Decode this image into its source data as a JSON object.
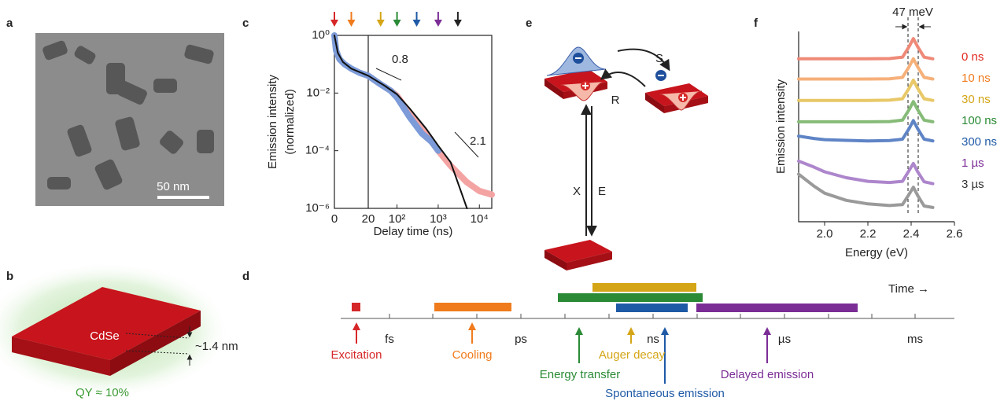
{
  "panels": {
    "a": {
      "label": "a",
      "scale_bar": "50 nm"
    },
    "b": {
      "label": "b",
      "material": "CdSe",
      "thickness": "~1.4 nm",
      "quantum_yield": "QY ≈ 10%"
    },
    "d": {
      "label": "d",
      "axis_title": "Time →",
      "time_units": [
        "fs",
        "ps",
        "ns",
        "µs",
        "ms"
      ],
      "processes": [
        "Excitation",
        "Cooling",
        "Energy transfer",
        "Auger decay",
        "Spontaneous emission",
        "Delayed emission"
      ]
    },
    "e": {
      "label": "e",
      "transitions": [
        "S",
        "R",
        "X",
        "E"
      ]
    }
  },
  "chart_data": [
    {
      "panel_label": "c",
      "type": "scatter",
      "ylabel_lines": [
        "Emission intensity",
        "(normalized)"
      ],
      "xlabel": "Delay time (ns)",
      "xscale": "linear-log",
      "x_break": 20,
      "yscale": "log",
      "xlim": [
        0,
        20000
      ],
      "ylim": [
        1e-06,
        1
      ],
      "xticks": [
        0,
        20,
        {
          "value": 100,
          "label": "10²"
        },
        {
          "value": 1000,
          "label": "10³"
        },
        {
          "value": 10000,
          "label": "10⁴"
        }
      ],
      "yticks": [
        {
          "value": 1,
          "label": "10⁰"
        },
        {
          "value": 0.01,
          "label": "10⁻²"
        },
        {
          "value": 0.0001,
          "label": "10⁻⁴"
        },
        {
          "value": 1e-06,
          "label": "10⁻⁶"
        }
      ],
      "slope_labels": [
        "0.8",
        "2.1"
      ],
      "excitation_arrows": {
        "x": [
          0,
          10,
          40,
          100,
          300,
          1000,
          3000
        ],
        "colors": [
          "#d62728",
          "#f07b1c",
          "#d4a516",
          "#2a8a35",
          "#1f5aa6",
          "#7b2d96",
          "#222222"
        ]
      },
      "series": [
        {
          "mode": "markers",
          "color": "#f4a3a3",
          "x": [
            20,
            40,
            70,
            100,
            200,
            400,
            700,
            1000,
            2000,
            5000,
            10000,
            20000
          ],
          "values": [
            0.04,
            0.02,
            0.012,
            0.008,
            0.002,
            0.0006,
            0.0002,
            0.0001,
            3e-05,
            8e-06,
            4e-06,
            3e-06
          ]
        },
        {
          "mode": "markers",
          "color": "#7c9bd8",
          "x": [
            0,
            1,
            3,
            6,
            10,
            15,
            20,
            40,
            70,
            100,
            200,
            400,
            700,
            1000
          ],
          "values": [
            1,
            0.3,
            0.15,
            0.1,
            0.07,
            0.05,
            0.04,
            0.02,
            0.012,
            0.007,
            0.0015,
            0.0004,
            0.0002,
            0.0001
          ]
        },
        {
          "mode": "line",
          "color": "#111111",
          "x": [
            0,
            2,
            5,
            10,
            20,
            50,
            100,
            200,
            500,
            1000,
            2000,
            5000
          ],
          "values": [
            1,
            0.25,
            0.12,
            0.07,
            0.04,
            0.018,
            0.009,
            0.003,
            0.0006,
            0.00015,
            4e-05,
            1e-06
          ]
        }
      ]
    },
    {
      "panel_label": "f",
      "type": "line",
      "ylabel": "Emission intensity",
      "xlabel": "Energy (eV)",
      "peak_width_label": "47 meV",
      "xlim": [
        1.88,
        2.6
      ],
      "ylim": [
        0,
        8
      ],
      "xticks": [
        {
          "value": 2,
          "label": "2.0"
        },
        2.2,
        2.4,
        2.6
      ],
      "x": [
        1.88,
        1.95,
        2.0,
        2.1,
        2.2,
        2.3,
        2.36,
        2.39,
        2.41,
        2.43,
        2.46,
        2.5
      ],
      "series": [
        {
          "name": "0 ns",
          "color": "#ef8a78",
          "label_color": "#e0281f",
          "values": [
            6.85,
            6.85,
            6.85,
            6.85,
            6.85,
            6.86,
            6.92,
            7.36,
            7.7,
            7.36,
            6.92,
            6.85
          ]
        },
        {
          "name": "10 ns",
          "color": "#f6b07a",
          "label_color": "#f07b1c",
          "values": [
            6,
            6,
            6,
            6,
            6,
            6.01,
            6.07,
            6.51,
            6.85,
            6.51,
            6.07,
            6
          ]
        },
        {
          "name": "30 ns",
          "color": "#e8c867",
          "label_color": "#d4a516",
          "values": [
            5.1,
            5.1,
            5.1,
            5.1,
            5.1,
            5.11,
            5.17,
            5.61,
            5.95,
            5.61,
            5.17,
            5.1
          ]
        },
        {
          "name": "100 ns",
          "color": "#86bb78",
          "label_color": "#2a8a35",
          "values": [
            4.2,
            4.2,
            4.2,
            4.2,
            4.2,
            4.21,
            4.27,
            4.71,
            5.05,
            4.71,
            4.27,
            4.2
          ]
        },
        {
          "name": "300 ns",
          "color": "#5f84c6",
          "label_color": "#1f5aa6",
          "values": [
            3.6,
            3.5,
            3.45,
            3.42,
            3.4,
            3.41,
            3.47,
            3.91,
            4.25,
            3.91,
            3.47,
            3.4
          ]
        },
        {
          "name": "1 µs",
          "color": "#ad86cc",
          "label_color": "#7b2d96",
          "values": [
            2.55,
            2.3,
            2.1,
            1.85,
            1.7,
            1.65,
            1.7,
            2.15,
            2.45,
            2.1,
            1.68,
            1.6
          ]
        },
        {
          "name": "3 µs",
          "color": "#9a9a9a",
          "label_color": "#333333",
          "values": [
            2.0,
            1.5,
            1.2,
            0.9,
            0.75,
            0.68,
            0.72,
            1.15,
            1.45,
            1.1,
            0.66,
            0.6
          ]
        }
      ]
    }
  ]
}
